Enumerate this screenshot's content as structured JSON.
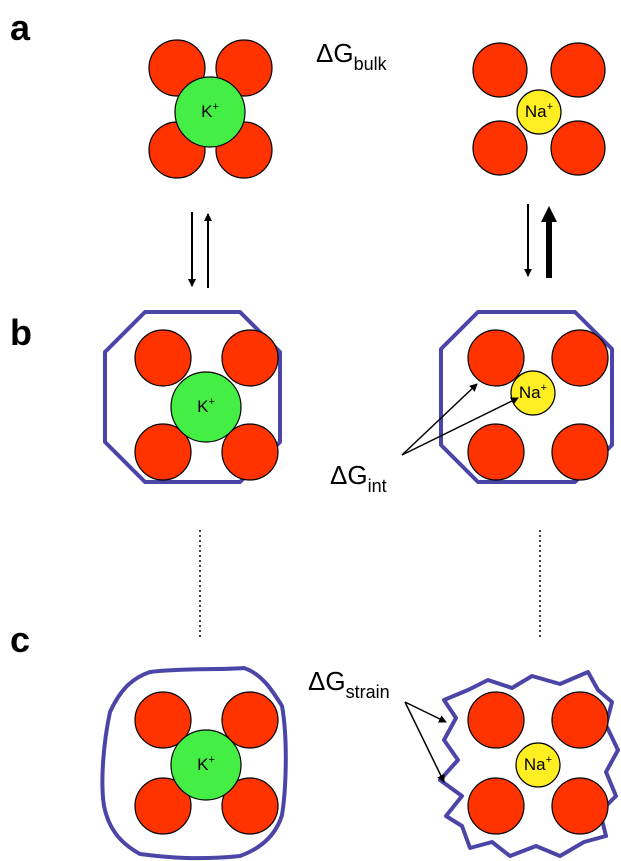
{
  "panels": [
    {
      "label": "a",
      "energy_term": {
        "symbol": "ΔG",
        "subscript": "bulk"
      },
      "ions": [
        {
          "element": "K",
          "charge": "+"
        },
        {
          "element": "Na",
          "charge": "+"
        }
      ]
    },
    {
      "label": "b",
      "energy_term": {
        "symbol": "ΔG",
        "subscript": "int"
      },
      "ions": [
        {
          "element": "K",
          "charge": "+"
        },
        {
          "element": "Na",
          "charge": "+"
        }
      ]
    },
    {
      "label": "c",
      "energy_term": {
        "symbol": "ΔG",
        "subscript": "strain"
      },
      "ions": [
        {
          "element": "K",
          "charge": "+"
        },
        {
          "element": "Na",
          "charge": "+"
        }
      ]
    }
  ]
}
